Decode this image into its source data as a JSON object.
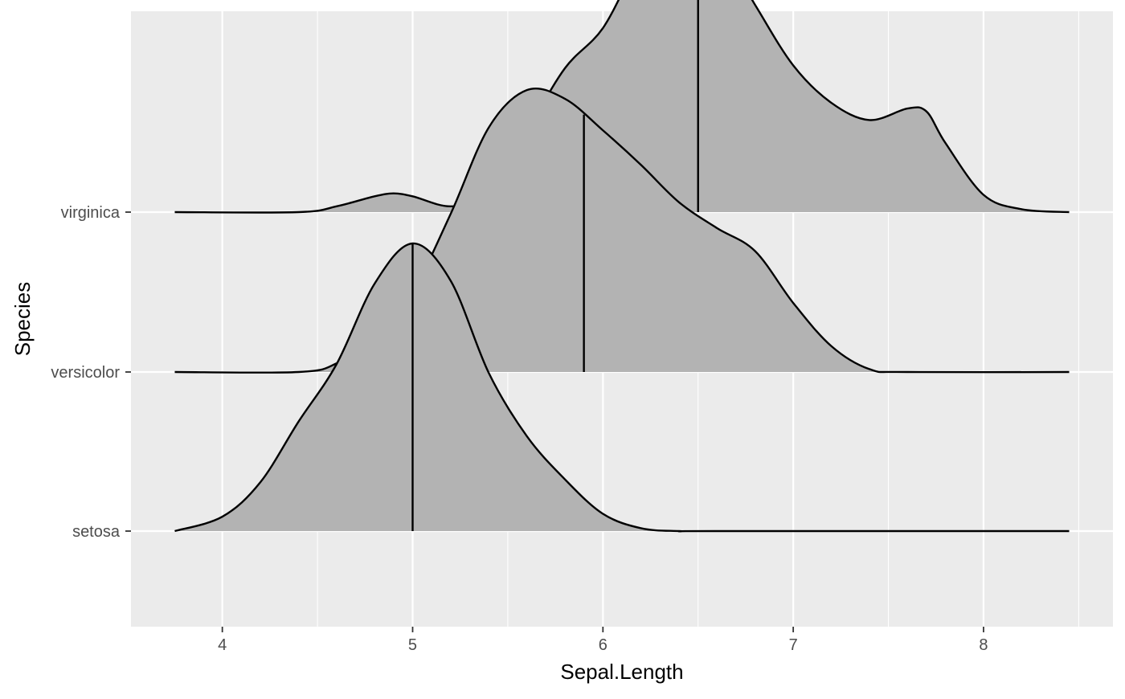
{
  "chart_data": {
    "type": "ridgeline",
    "xlabel": "Sepal.Length",
    "ylabel": "Species",
    "xlim": [
      3.52,
      8.68
    ],
    "x_ticks": [
      4,
      5,
      6,
      7,
      8
    ],
    "grid": true,
    "categories": [
      "setosa",
      "versicolor",
      "virginica"
    ],
    "colors": {
      "panel_background": "#ebebeb",
      "grid": "#ffffff",
      "fill": "#b3b3b3",
      "line": "#000000"
    },
    "series": [
      {
        "name": "setosa",
        "quantile_line": 5.0,
        "x": [
          3.75,
          4.0,
          4.2,
          4.4,
          4.6,
          4.8,
          5.0,
          5.2,
          5.4,
          5.6,
          5.8,
          6.0,
          6.2,
          6.4,
          6.6,
          8.45
        ],
        "density": [
          0.0,
          0.05,
          0.17,
          0.38,
          0.58,
          0.86,
          1.0,
          0.87,
          0.55,
          0.33,
          0.18,
          0.06,
          0.01,
          0.0,
          0.0,
          0.0
        ]
      },
      {
        "name": "versicolor",
        "quantile_line": 5.9,
        "x": [
          3.75,
          4.4,
          4.6,
          4.8,
          5.0,
          5.2,
          5.4,
          5.6,
          5.8,
          6.0,
          6.2,
          6.4,
          6.6,
          6.8,
          7.0,
          7.2,
          7.4,
          7.6,
          8.45
        ],
        "density": [
          0.0,
          0.0,
          0.03,
          0.12,
          0.28,
          0.55,
          0.85,
          0.98,
          0.95,
          0.84,
          0.72,
          0.59,
          0.5,
          0.42,
          0.24,
          0.09,
          0.01,
          0.0,
          0.0
        ]
      },
      {
        "name": "virginica",
        "quantile_line": 6.5,
        "x": [
          3.75,
          4.4,
          4.6,
          4.8,
          4.9,
          5.0,
          5.2,
          5.4,
          5.6,
          5.8,
          6.0,
          6.2,
          6.4,
          6.6,
          6.8,
          7.0,
          7.2,
          7.4,
          7.6,
          7.7,
          7.8,
          8.0,
          8.2,
          8.45
        ],
        "density": [
          0.0,
          0.0,
          0.02,
          0.055,
          0.065,
          0.055,
          0.02,
          0.06,
          0.28,
          0.5,
          0.64,
          0.88,
          1.0,
          0.94,
          0.72,
          0.51,
          0.38,
          0.32,
          0.36,
          0.35,
          0.24,
          0.06,
          0.01,
          0.0
        ]
      }
    ]
  }
}
